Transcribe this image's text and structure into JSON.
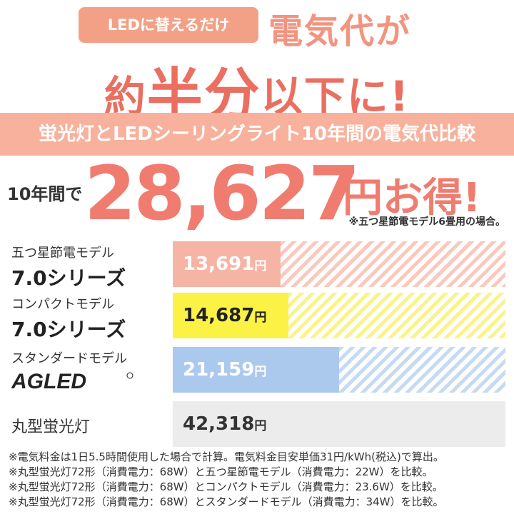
{
  "hero": {
    "badge": "LEDに替えるだけ",
    "line1": "電気代が",
    "line2_pre": "約",
    "line2_big": "半分",
    "line2_post": "以下に!"
  },
  "banner": {
    "text": "蛍光灯とLEDシーリングライト10年間の電気代比較"
  },
  "total": {
    "prefix": "10年間で",
    "amount": "28,627",
    "suffix": "円お得!",
    "note": "※五つ星節電モデル6畳用の場合。"
  },
  "colors": {
    "accent": "#f07c70",
    "banner": "#f7b19c",
    "badge": "#f2a187"
  },
  "chart_data": {
    "type": "bar",
    "orientation": "horizontal",
    "value_unit": "円",
    "xlim": [
      0,
      42318
    ],
    "categories": [
      "五つ星節電モデル 7.0シリーズ",
      "コンパクトモデル 7.0シリーズ",
      "スタンダードモデル AGLED",
      "丸型蛍光灯"
    ],
    "values": [
      13691,
      14687,
      21159,
      42318
    ],
    "bars": [
      {
        "label_top": "五つ星節電モデル",
        "label_bottom": "7.0シリーズ",
        "value": 13691,
        "value_text": "13,691",
        "unit": "円",
        "fill": "#f6b4a4",
        "stripe": "#f9c9bd",
        "text_color": "#ffffff"
      },
      {
        "label_top": "コンパクトモデル",
        "label_bottom": "7.0シリーズ",
        "value": 14687,
        "value_text": "14,687",
        "unit": "円",
        "fill": "#fbf245",
        "stripe": "#fbf38a",
        "text_color": "#222222"
      },
      {
        "label_top": "スタンダードモデル",
        "label_bottom": "AGLED",
        "value": 21159,
        "value_text": "21,159",
        "unit": "円",
        "fill": "#abc9ec",
        "stripe": "#c6daf2",
        "text_color": "#ffffff"
      },
      {
        "label_top": "丸型蛍光灯",
        "label_bottom": "",
        "value": 42318,
        "value_text": "42,318",
        "unit": "円",
        "fill": "#ececec",
        "stripe": "#ececec",
        "text_color": "#333333"
      }
    ]
  },
  "footnotes": [
    "※電気料金は1日5.5時間使用した場合で計算。電気料金目安単価31円/kWh(税込)で算出。",
    "※丸型蛍光灯72形（消費電力：68W）と五つ星節電モデル（消費電力：22W）を比較。",
    "※丸型蛍光灯72形（消費電力：68W）とコンパクトモデル（消費電力：23.6W）を比較。",
    "※丸型蛍光灯72形（消費電力：68W）とスタンダードモデル（消費電力：34W）を比較。"
  ]
}
